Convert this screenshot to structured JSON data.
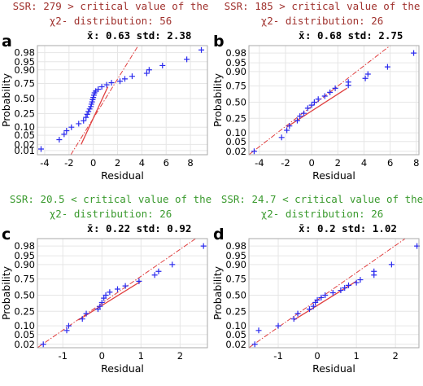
{
  "colors": {
    "fail_text": "#a0322e",
    "pass_text": "#3a9a2e",
    "points": "#2a2aee",
    "fit_line": "#e04040",
    "grid": "#e6e6e6",
    "frame": "#aaaaaa"
  },
  "chart_data": [
    {
      "type": "scatter",
      "panel": "a",
      "ssr_line1": "SSR: 279 > critical value of the",
      "ssr_line2": "χ2- distribution:  56",
      "ssr_status": "fail",
      "mean_label": "x̄",
      "stats": ": 0.63 std: 2.38",
      "xlabel": "Residual",
      "ylabel": "Probability",
      "xlim": [
        -4.6,
        9.4
      ],
      "xticks": [
        -4,
        -2,
        0,
        2,
        4,
        6,
        8
      ],
      "yticks": [
        0.01,
        0.02,
        0.05,
        0.1,
        0.25,
        0.5,
        0.75,
        0.9,
        0.95,
        0.98
      ],
      "ytick_labels": [
        "0.01",
        "0.02",
        "0.05",
        "0.10",
        "0.25",
        "0.50",
        "0.75",
        "0.90",
        "0.95",
        "0.98"
      ],
      "ylim": [
        0.006,
        0.991
      ],
      "fit_line": [
        [
          -1.85,
          0.006
        ],
        [
          3.7,
          0.991
        ]
      ],
      "fit_solid": [
        [
          -1.0,
          0.02
        ],
        [
          1.2,
          0.7
        ]
      ],
      "points": [
        [
          -4.3,
          0.012
        ],
        [
          -2.8,
          0.033
        ],
        [
          -2.4,
          0.055
        ],
        [
          -2.2,
          0.075
        ],
        [
          -1.8,
          0.1
        ],
        [
          -1.2,
          0.13
        ],
        [
          -0.8,
          0.16
        ],
        [
          -0.6,
          0.2
        ],
        [
          -0.5,
          0.24
        ],
        [
          -0.4,
          0.28
        ],
        [
          -0.3,
          0.32
        ],
        [
          -0.2,
          0.36
        ],
        [
          -0.15,
          0.4
        ],
        [
          -0.1,
          0.44
        ],
        [
          -0.05,
          0.48
        ],
        [
          0.0,
          0.52
        ],
        [
          0.05,
          0.56
        ],
        [
          0.1,
          0.6
        ],
        [
          0.2,
          0.63
        ],
        [
          0.4,
          0.66
        ],
        [
          0.7,
          0.7
        ],
        [
          1.1,
          0.73
        ],
        [
          1.5,
          0.76
        ],
        [
          2.2,
          0.78
        ],
        [
          2.6,
          0.81
        ],
        [
          3.2,
          0.84
        ],
        [
          4.4,
          0.87
        ],
        [
          4.6,
          0.9
        ],
        [
          5.7,
          0.93
        ],
        [
          7.7,
          0.96
        ],
        [
          8.9,
          0.985
        ]
      ]
    },
    {
      "type": "scatter",
      "panel": "b",
      "ssr_line1": "SSR: 185 > critical value of the",
      "ssr_line2": "χ2- distribution:  26",
      "ssr_status": "fail",
      "mean_label": "x̄",
      "stats": ": 0.68 std: 2.75",
      "xlabel": "Residual",
      "ylabel": "Probability",
      "xlim": [
        -4.8,
        8.2
      ],
      "xticks": [
        -4,
        -2,
        0,
        2,
        4,
        6,
        8
      ],
      "yticks": [
        0.02,
        0.05,
        0.1,
        0.25,
        0.5,
        0.75,
        0.9,
        0.95,
        0.98
      ],
      "ytick_labels": [
        "0.02",
        "0.05",
        "0.10",
        "0.25",
        "0.50",
        "0.75",
        "0.90",
        "0.95",
        "0.98"
      ],
      "ylim": [
        0.014,
        0.991
      ],
      "fit_line": [
        [
          -4.8,
          0.014
        ],
        [
          6.0,
          0.991
        ]
      ],
      "fit_solid": [
        [
          -1.9,
          0.15
        ],
        [
          2.7,
          0.72
        ]
      ],
      "points": [
        [
          -4.4,
          0.02
        ],
        [
          -2.3,
          0.07
        ],
        [
          -1.9,
          0.12
        ],
        [
          -1.7,
          0.16
        ],
        [
          -1.1,
          0.22
        ],
        [
          -0.9,
          0.28
        ],
        [
          -0.6,
          0.32
        ],
        [
          -0.3,
          0.4
        ],
        [
          0.0,
          0.45
        ],
        [
          0.2,
          0.5
        ],
        [
          0.5,
          0.55
        ],
        [
          1.0,
          0.6
        ],
        [
          1.4,
          0.66
        ],
        [
          1.8,
          0.72
        ],
        [
          2.8,
          0.76
        ],
        [
          2.8,
          0.8
        ],
        [
          4.1,
          0.84
        ],
        [
          4.3,
          0.88
        ],
        [
          5.8,
          0.93
        ],
        [
          7.8,
          0.98
        ]
      ]
    },
    {
      "type": "scatter",
      "panel": "c",
      "ssr_line1": "SSR: 20.5 < critical value of the",
      "ssr_line2": "χ2- distribution: 26",
      "ssr_status": "pass",
      "mean_label": "x̄",
      "stats": ": 0.22 std: 0.92",
      "xlabel": "Residual",
      "ylabel": "Probability",
      "xlim": [
        -1.65,
        2.7
      ],
      "xticks": [
        -1,
        0,
        1,
        2
      ],
      "yticks": [
        0.02,
        0.05,
        0.1,
        0.25,
        0.5,
        0.75,
        0.9,
        0.95,
        0.98
      ],
      "ytick_labels": [
        "0.02",
        "0.05",
        "0.10",
        "0.25",
        "0.50",
        "0.75",
        "0.90",
        "0.95",
        "0.98"
      ],
      "ylim": [
        0.014,
        0.991
      ],
      "fit_line": [
        [
          -1.65,
          0.014
        ],
        [
          2.4,
          0.991
        ]
      ],
      "fit_solid": [
        [
          -0.6,
          0.15
        ],
        [
          1.0,
          0.72
        ]
      ],
      "points": [
        [
          -1.5,
          0.02
        ],
        [
          -0.9,
          0.07
        ],
        [
          -0.85,
          0.1
        ],
        [
          -0.5,
          0.16
        ],
        [
          -0.4,
          0.22
        ],
        [
          -0.1,
          0.28
        ],
        [
          -0.05,
          0.32
        ],
        [
          0.0,
          0.38
        ],
        [
          0.05,
          0.45
        ],
        [
          0.1,
          0.5
        ],
        [
          0.2,
          0.55
        ],
        [
          0.4,
          0.6
        ],
        [
          0.6,
          0.65
        ],
        [
          0.95,
          0.72
        ],
        [
          1.35,
          0.8
        ],
        [
          1.45,
          0.84
        ],
        [
          1.8,
          0.9
        ],
        [
          2.6,
          0.98
        ]
      ]
    },
    {
      "type": "scatter",
      "panel": "d",
      "ssr_line1": "SSR: 24.7 < critical value of the",
      "ssr_line2": "χ2- distribution: 26",
      "ssr_status": "pass",
      "mean_label": "x̄",
      "stats": ": 0.2 std: 1.02",
      "xlabel": "Residual",
      "ylabel": "Probability",
      "xlim": [
        -1.75,
        2.6
      ],
      "xticks": [
        -1,
        0,
        1,
        2
      ],
      "yticks": [
        0.02,
        0.05,
        0.1,
        0.25,
        0.5,
        0.75,
        0.9,
        0.95,
        0.98
      ],
      "ytick_labels": [
        "0.02",
        "0.05",
        "0.10",
        "0.25",
        "0.50",
        "0.75",
        "0.90",
        "0.95",
        "0.98"
      ],
      "ylim": [
        0.014,
        0.991
      ],
      "fit_line": [
        [
          -1.75,
          0.014
        ],
        [
          2.25,
          0.991
        ]
      ],
      "fit_solid": [
        [
          -0.6,
          0.15
        ],
        [
          1.0,
          0.72
        ]
      ],
      "points": [
        [
          -1.6,
          0.02
        ],
        [
          -1.5,
          0.07
        ],
        [
          -1.0,
          0.1
        ],
        [
          -0.6,
          0.16
        ],
        [
          -0.5,
          0.22
        ],
        [
          -0.2,
          0.28
        ],
        [
          -0.1,
          0.32
        ],
        [
          -0.05,
          0.38
        ],
        [
          0.0,
          0.42
        ],
        [
          0.1,
          0.46
        ],
        [
          0.2,
          0.5
        ],
        [
          0.4,
          0.54
        ],
        [
          0.6,
          0.58
        ],
        [
          0.7,
          0.62
        ],
        [
          0.8,
          0.66
        ],
        [
          1.0,
          0.7
        ],
        [
          1.1,
          0.74
        ],
        [
          1.45,
          0.8
        ],
        [
          1.45,
          0.84
        ],
        [
          1.9,
          0.9
        ],
        [
          2.55,
          0.98
        ]
      ]
    }
  ]
}
